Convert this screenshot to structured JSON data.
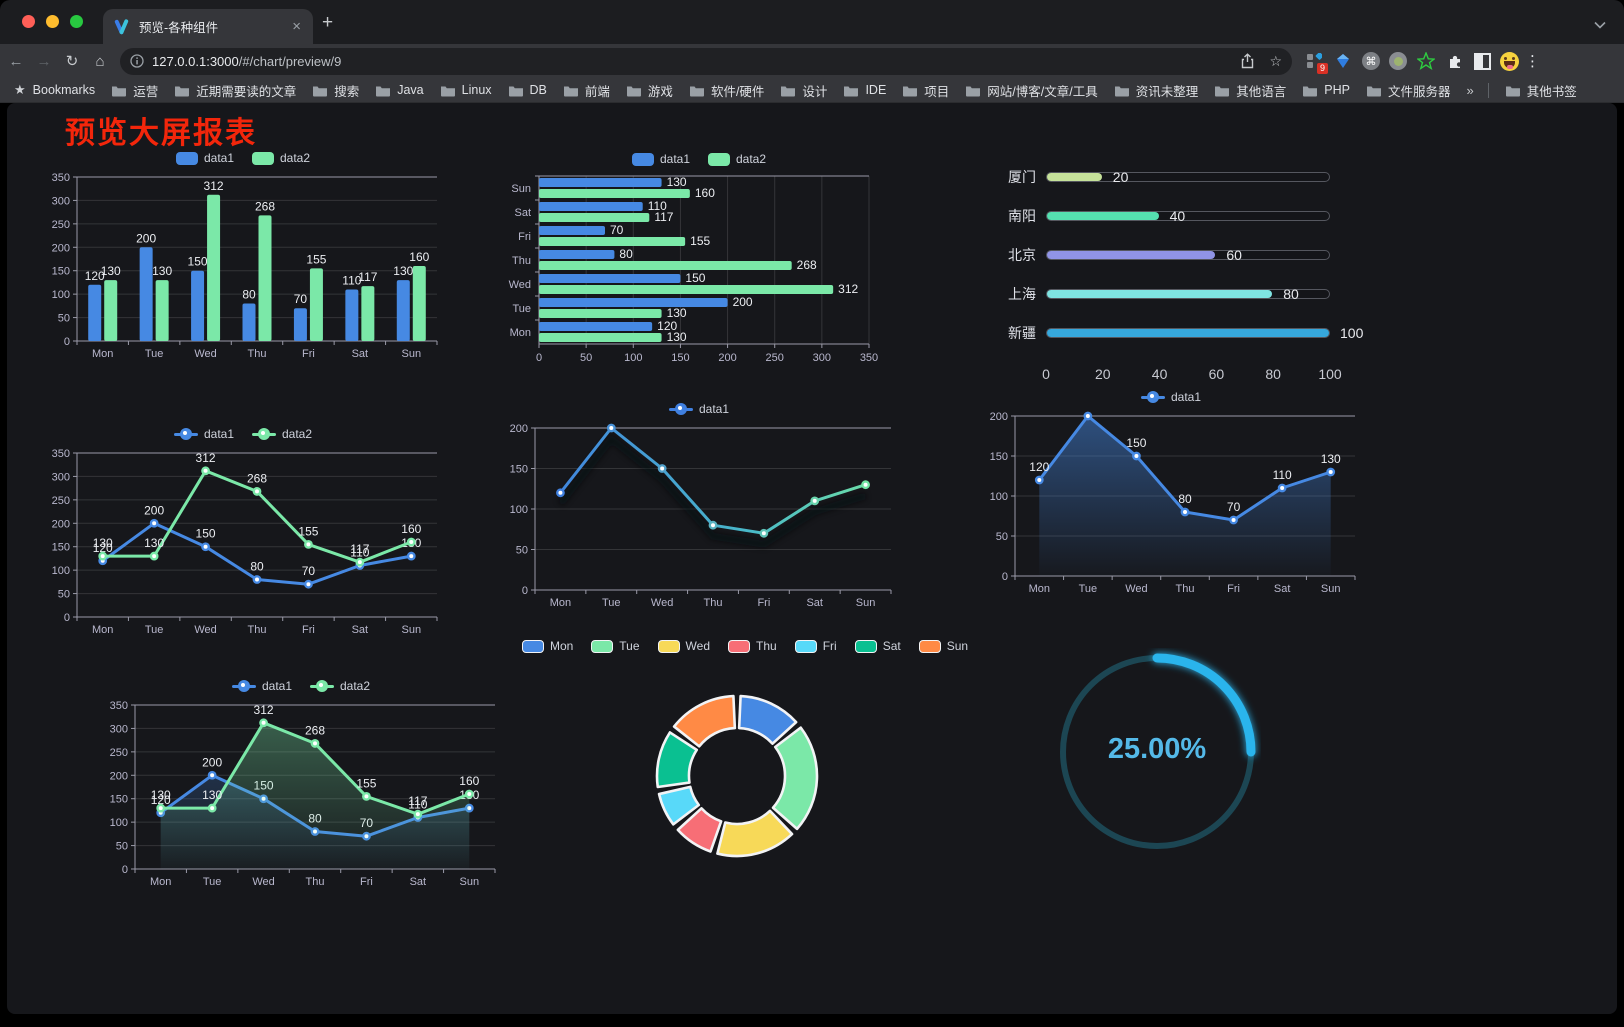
{
  "browser": {
    "tab_title": "预览-各种组件",
    "url_host": "127.0.0.1:3000",
    "url_path": "/#/chart/preview/9",
    "bookmarks_label": "Bookmarks",
    "bookmarks": [
      "运营",
      "近期需要读的文章",
      "搜索",
      "Java",
      "Linux",
      "DB",
      "前端",
      "游戏",
      "软件/硬件",
      "设计",
      "IDE",
      "项目",
      "网站/博客/文章/工具",
      "资讯未整理",
      "其他语言",
      "PHP",
      "文件服务器"
    ],
    "bookmarks_overflow": "»",
    "other_bookmarks": "其他书签",
    "extension_badge": "9",
    "glyphs": {
      "back": "←",
      "forward": "→",
      "reload": "↻",
      "home": "⌂",
      "close": "×",
      "new_tab": "+",
      "kebab": "⋮",
      "star": "☆",
      "bookmarks_star": "★",
      "cmd": "⌘"
    }
  },
  "page": {
    "title": "预览大屏报表",
    "title_color": "#f3260b"
  },
  "chart_data": [
    {
      "id": "bar-grouped",
      "type": "bar",
      "variant": "grouped-vertical",
      "categories": [
        "Mon",
        "Tue",
        "Wed",
        "Thu",
        "Fri",
        "Sat",
        "Sun"
      ],
      "series": [
        {
          "name": "data1",
          "color": "#4689e3",
          "values": [
            120,
            200,
            150,
            80,
            70,
            110,
            130
          ]
        },
        {
          "name": "data2",
          "color": "#7be8a8",
          "values": [
            130,
            130,
            312,
            268,
            155,
            117,
            160
          ]
        }
      ],
      "ylim": [
        0,
        350
      ],
      "y_interval": 50,
      "value_labels": true,
      "legend_position": "top",
      "grid": true
    },
    {
      "id": "bar-horizontal",
      "type": "bar",
      "variant": "grouped-horizontal",
      "categories": [
        "Mon",
        "Tue",
        "Wed",
        "Thu",
        "Fri",
        "Sat",
        "Sun"
      ],
      "categories_display_order": "reversed-top-to-bottom",
      "series": [
        {
          "name": "data1",
          "color": "#4689e3",
          "values": [
            120,
            200,
            150,
            80,
            70,
            110,
            130
          ]
        },
        {
          "name": "data2",
          "color": "#7be8a8",
          "values": [
            130,
            130,
            312,
            268,
            155,
            117,
            160
          ]
        }
      ],
      "xlim": [
        0,
        350
      ],
      "x_interval": 50,
      "value_labels": true,
      "legend_position": "top",
      "grid": true
    },
    {
      "id": "progress",
      "type": "bar",
      "variant": "progress-list",
      "categories": [
        "厦门",
        "南阳",
        "北京",
        "上海",
        "新疆"
      ],
      "values": [
        20,
        40,
        60,
        80,
        100
      ],
      "colors": [
        "#c6e29a",
        "#55e0b0",
        "#9094e6",
        "#7fe4e2",
        "#36a8dd"
      ],
      "xlim": [
        0,
        100
      ],
      "xticks": [
        0,
        20,
        40,
        60,
        80,
        100
      ],
      "value_labels": true
    },
    {
      "id": "line-basic",
      "type": "line",
      "categories": [
        "Mon",
        "Tue",
        "Wed",
        "Thu",
        "Fri",
        "Sat",
        "Sun"
      ],
      "series": [
        {
          "name": "data1",
          "color": "#4689e3",
          "values": [
            120,
            200,
            150,
            80,
            70,
            110,
            130
          ]
        },
        {
          "name": "data2",
          "color": "#7be8a8",
          "values": [
            130,
            130,
            312,
            268,
            155,
            117,
            160
          ]
        }
      ],
      "ylim": [
        0,
        350
      ],
      "y_interval": 50,
      "value_labels": true,
      "markers": true,
      "legend_position": "top"
    },
    {
      "id": "line-gradient",
      "type": "line",
      "categories": [
        "Mon",
        "Tue",
        "Wed",
        "Thu",
        "Fri",
        "Sat",
        "Sun"
      ],
      "series": [
        {
          "name": "data1",
          "gradient": [
            "#4080e0",
            "#72e3a2"
          ],
          "values": [
            120,
            200,
            150,
            80,
            70,
            110,
            130
          ]
        }
      ],
      "ylim": [
        0,
        200
      ],
      "y_interval": 50,
      "value_labels": false,
      "markers": true,
      "shadow": true,
      "legend_position": "top"
    },
    {
      "id": "line-area",
      "type": "line",
      "categories": [
        "Mon",
        "Tue",
        "Wed",
        "Thu",
        "Fri",
        "Sat",
        "Sun"
      ],
      "series": [
        {
          "name": "data1",
          "color": "#4689e3",
          "values": [
            120,
            200,
            150,
            80,
            70,
            110,
            130
          ],
          "area": true,
          "area_opacity": 0.5
        }
      ],
      "ylim": [
        0,
        200
      ],
      "y_interval": 50,
      "value_labels": true,
      "markers": true,
      "legend_position": "top"
    },
    {
      "id": "line-two-areas",
      "type": "line",
      "categories": [
        "Mon",
        "Tue",
        "Wed",
        "Thu",
        "Fri",
        "Sat",
        "Sun"
      ],
      "series": [
        {
          "name": "data1",
          "color": "#4689e3",
          "values": [
            120,
            200,
            150,
            80,
            70,
            110,
            130
          ],
          "area": true,
          "area_opacity": 0.38
        },
        {
          "name": "data2",
          "color": "#7be8a8",
          "values": [
            130,
            130,
            312,
            268,
            155,
            117,
            160
          ],
          "area": true,
          "area_opacity": 0.38
        }
      ],
      "ylim": [
        0,
        350
      ],
      "y_interval": 50,
      "value_labels": true,
      "markers": true,
      "legend_position": "top"
    },
    {
      "id": "donut",
      "type": "pie",
      "inner_radius_ratio": 0.6,
      "categories": [
        "Mon",
        "Tue",
        "Wed",
        "Thu",
        "Fri",
        "Sat",
        "Sun"
      ],
      "values": [
        120,
        200,
        150,
        80,
        70,
        110,
        130
      ],
      "colors": [
        "#4689e3",
        "#7be8a8",
        "#f7d958",
        "#f76e76",
        "#58d9f9",
        "#0ac091",
        "#ff8a45"
      ],
      "legend_position": "top",
      "border_color": "#f2f3f5"
    },
    {
      "id": "gauge",
      "type": "gauge",
      "value": 25,
      "label": "25.00%",
      "color": "#29b4ec",
      "track_color": "#1c4653",
      "text_color": "#54b9e8"
    }
  ]
}
